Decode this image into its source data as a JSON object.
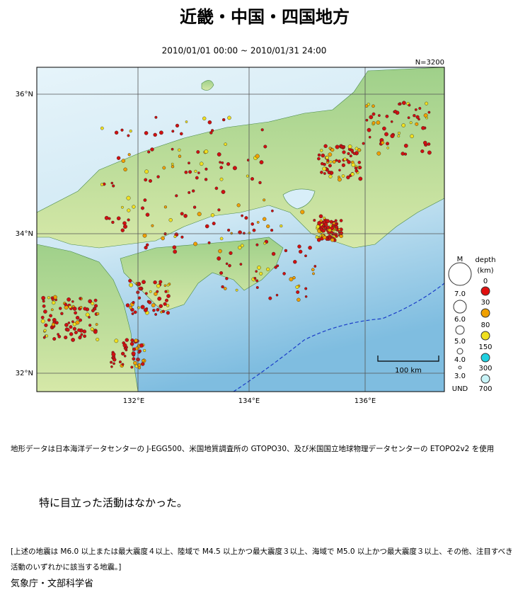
{
  "header": {
    "title": "近畿・中国・四国地方",
    "period": "2010/01/01 00:00 ~ 2010/01/31 24:00"
  },
  "map": {
    "count": "N=3200",
    "lat_labels": [
      "36°N",
      "34°N",
      "32°N"
    ],
    "lon_labels": [
      "132°E",
      "134°E",
      "136°E"
    ],
    "scale_label": "100 km"
  },
  "legend": {
    "magnitude_title": "M",
    "depth_title": "depth",
    "depth_unit": "(km)",
    "magnitudes": [
      "7.0",
      "6.0",
      "5.0",
      "4.0",
      "3.0",
      "UND"
    ],
    "depths": [
      "0",
      "30",
      "80",
      "150",
      "300",
      "700"
    ]
  },
  "source_note": "地形データは日本海洋データセンターの J-EGG500、米国地質調査所の GTOPO30、及び米国国立地球物理データセンターの ETOPO2v2 を使用",
  "comment": "特に目立った活動はなかった。",
  "criteria_note": "[上述の地震は M6.0 以上または最大震度４以上、陸域で M4.5 以上かつ最大震度３以上、海域で M5.0 以上かつ最大震度３以上、その他、注目すべき活動のいずれかに該当する地震。]",
  "agency": "気象庁・文部科学省"
}
